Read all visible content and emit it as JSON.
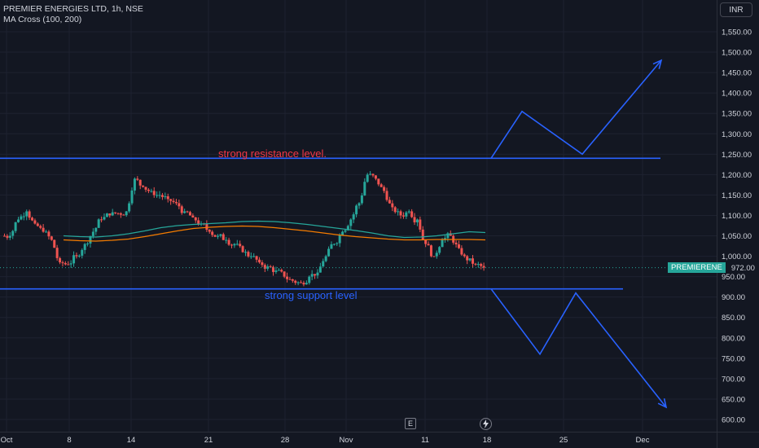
{
  "legend": {
    "title": "PREMIER ENERGIES LTD, 1h, NSE",
    "indicator": "MA Cross (100, 200)"
  },
  "currency_button": "INR",
  "symbol_tag": {
    "symbol": "PREMIERENE",
    "price": "972.00",
    "color": "#26a69a"
  },
  "annotations": {
    "resistance": "strong resistance level.",
    "support": "strong support level"
  },
  "bottom_buttons": {
    "e_label": "E",
    "bolt_icon": "lightning-icon"
  },
  "colors": {
    "background": "#131722",
    "up": "#26a69a",
    "down": "#ef5350",
    "line_blue": "#2962ff",
    "ma_fast": "#26a69a",
    "ma_slow": "#f57c00",
    "resistance_text": "#f23645",
    "support_text": "#2962ff"
  },
  "chart_data": {
    "type": "candlestick",
    "y_axis": {
      "ticks": [
        "1,550.00",
        "1,500.00",
        "1,450.00",
        "1,400.00",
        "1,350.00",
        "1,300.00",
        "1,250.00",
        "1,200.00",
        "1,150.00",
        "1,100.00",
        "1,050.00",
        "1,000.00",
        "950.00",
        "900.00",
        "850.00",
        "800.00",
        "750.00",
        "700.00",
        "650.00",
        "600.00"
      ],
      "range": [
        585,
        1590
      ]
    },
    "x_axis": {
      "ticks": [
        "Oct",
        "8",
        "14",
        "21",
        "28",
        "Nov",
        "11",
        "18",
        "25",
        "Dec"
      ]
    },
    "last_price": 972,
    "resistance_level": 1240,
    "support_level": 920,
    "close_series": [
      1050,
      1090,
      1110,
      1080,
      1060,
      1040,
      985,
      980,
      1000,
      1030,
      1060,
      1090,
      1100,
      1105,
      1110,
      1190,
      1170,
      1160,
      1150,
      1140,
      1130,
      1110,
      1095,
      1080,
      1060,
      1050,
      1040,
      1030,
      1010,
      1000,
      985,
      975,
      965,
      950,
      940,
      935,
      950,
      960,
      1000,
      1030,
      1060,
      1090,
      1130,
      1200,
      1190,
      1160,
      1120,
      1100,
      1110,
      1090,
      1030,
      1000,
      1040,
      1050,
      1020,
      990,
      980,
      972
    ],
    "ma_fast_series": [
      1050,
      1048,
      1047,
      1050,
      1055,
      1062,
      1070,
      1075,
      1078,
      1080,
      1082,
      1085,
      1086,
      1085,
      1082,
      1078,
      1073,
      1068,
      1063,
      1057,
      1050,
      1046,
      1047,
      1050,
      1055,
      1060,
      1058
    ],
    "ma_slow_series": [
      1040,
      1038,
      1037,
      1039,
      1042,
      1048,
      1055,
      1062,
      1068,
      1071,
      1073,
      1074,
      1073,
      1070,
      1066,
      1062,
      1057,
      1052,
      1048,
      1045,
      1042,
      1040,
      1040,
      1041,
      1041,
      1041,
      1040
    ],
    "projection_up": [
      1240,
      1355,
      1250,
      1480
    ],
    "projection_down": [
      920,
      760,
      910,
      630
    ]
  }
}
